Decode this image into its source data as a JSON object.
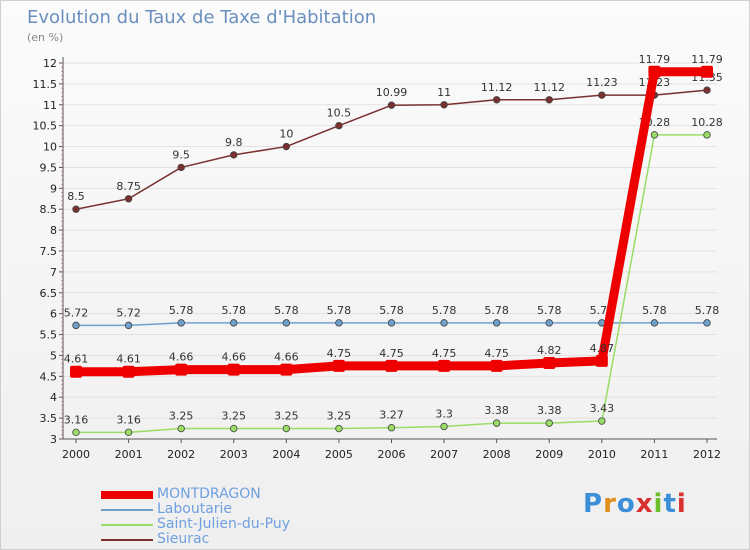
{
  "header": {
    "title": "Evolution du Taux de Taxe d'Habitation",
    "subtitle": "(en %)"
  },
  "brand": {
    "letters": [
      "P",
      "r",
      "o",
      "x",
      "i",
      "t",
      "i"
    ],
    "colors": [
      "#3b8fd8",
      "#e0901a",
      "#3b8fd8",
      "#d93030",
      "#6cbf2a",
      "#3b8fd8",
      "#d93030"
    ]
  },
  "chart_data": {
    "type": "line",
    "title": "Evolution du Taux de Taxe d'Habitation",
    "ylabel": "(en %)",
    "xlabel": "",
    "x": [
      "2000",
      "2001",
      "2002",
      "2003",
      "2004",
      "2005",
      "2006",
      "2007",
      "2008",
      "2009",
      "2010",
      "2011",
      "2012"
    ],
    "ylim": [
      3,
      12
    ],
    "yticks": [
      "3",
      "3.5",
      "4",
      "4.5",
      "5",
      "5.5",
      "6",
      "6.5",
      "7",
      "7.5",
      "8",
      "8.5",
      "9",
      "9.5",
      "10",
      "10.5",
      "11",
      "11.5",
      "12"
    ],
    "legend_position": "bottom-left",
    "series": [
      {
        "name": "MONTDRAGON",
        "color": "#ee0000",
        "thick": true,
        "values": [
          4.61,
          4.61,
          4.66,
          4.66,
          4.66,
          4.75,
          4.75,
          4.75,
          4.75,
          4.82,
          4.87,
          11.79,
          11.79
        ],
        "labels": [
          "4.61",
          "4.61",
          "4.66",
          "4.66",
          "4.66",
          "4.75",
          "4.75",
          "4.75",
          "4.75",
          "4.82",
          "4.87",
          "11.79",
          "11.79"
        ]
      },
      {
        "name": "Laboutarie",
        "color": "#6fa0cc",
        "thick": false,
        "values": [
          5.72,
          5.72,
          5.78,
          5.78,
          5.78,
          5.78,
          5.78,
          5.78,
          5.78,
          5.78,
          5.78,
          5.78,
          5.78
        ],
        "labels": [
          "5.72",
          "5.72",
          "5.78",
          "5.78",
          "5.78",
          "5.78",
          "5.78",
          "5.78",
          "5.78",
          "5.78",
          "5.78",
          "5.78",
          "5.78"
        ]
      },
      {
        "name": "Saint-Julien-du-Puy",
        "color": "#99dd66",
        "thick": false,
        "values": [
          3.16,
          3.16,
          3.25,
          3.25,
          3.25,
          3.25,
          3.27,
          3.3,
          3.38,
          3.38,
          3.43,
          10.28,
          10.28
        ],
        "labels": [
          "3.16",
          "3.16",
          "3.25",
          "3.25",
          "3.25",
          "3.25",
          "3.27",
          "3.3",
          "3.38",
          "3.38",
          "3.43",
          "10.28",
          "10.28"
        ]
      },
      {
        "name": "Sieurac",
        "color": "#7a3030",
        "thick": false,
        "values": [
          8.5,
          8.75,
          9.5,
          9.8,
          10,
          10.5,
          10.99,
          11,
          11.12,
          11.12,
          11.23,
          11.23,
          11.35
        ],
        "labels": [
          "8.5",
          "8.75",
          "9.5",
          "9.8",
          "10",
          "10.5",
          "10.99",
          "11",
          "11.12",
          "11.12",
          "11.23",
          "11.23",
          "11.35"
        ]
      }
    ]
  }
}
